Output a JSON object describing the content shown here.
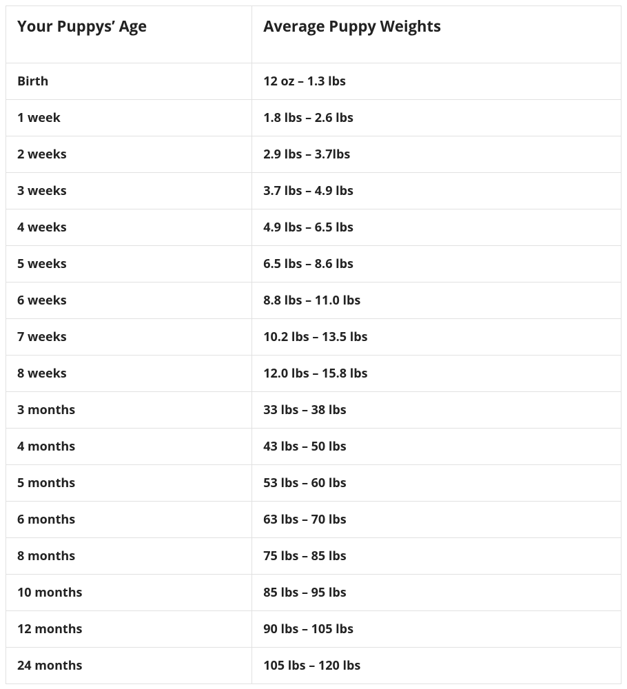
{
  "table": {
    "columns": [
      {
        "label": "Your Puppys’ Age"
      },
      {
        "label": "Average Puppy Weights"
      }
    ],
    "rows": [
      {
        "age": "Birth",
        "weight": "12 oz – 1.3 lbs"
      },
      {
        "age": "1 week",
        "weight": "1.8 lbs – 2.6 lbs"
      },
      {
        "age": "2 weeks",
        "weight": "2.9 lbs – 3.7lbs"
      },
      {
        "age": "3 weeks",
        "weight": "3.7 lbs – 4.9 lbs"
      },
      {
        "age": "4 weeks",
        "weight": "4.9 lbs – 6.5 lbs"
      },
      {
        "age": "5 weeks",
        "weight": "6.5 lbs – 8.6 lbs"
      },
      {
        "age": "6 weeks",
        "weight": "8.8 lbs – 11.0 lbs"
      },
      {
        "age": "7 weeks",
        "weight": "10.2 lbs – 13.5 lbs"
      },
      {
        "age": "8 weeks",
        "weight": "12.0 lbs – 15.8 lbs"
      },
      {
        "age": "3 months",
        "weight": "33 lbs – 38 lbs"
      },
      {
        "age": "4 months",
        "weight": "43 lbs – 50 lbs"
      },
      {
        "age": "5 months",
        "weight": "53 lbs – 60 lbs"
      },
      {
        "age": "6 months",
        "weight": "63 lbs – 70 lbs"
      },
      {
        "age": "8 months",
        "weight": "75 lbs – 85 lbs"
      },
      {
        "age": "10 months",
        "weight": "85 lbs – 95 lbs"
      },
      {
        "age": "12 months",
        "weight": "90 lbs – 105 lbs"
      },
      {
        "age": "24 months",
        "weight": "105 lbs – 120 lbs"
      }
    ],
    "border_color": "#e1e1e1",
    "text_color": "#222222",
    "background_color": "#ffffff",
    "header_fontsize": 22,
    "cell_fontsize": 18,
    "font_weight": 700
  }
}
